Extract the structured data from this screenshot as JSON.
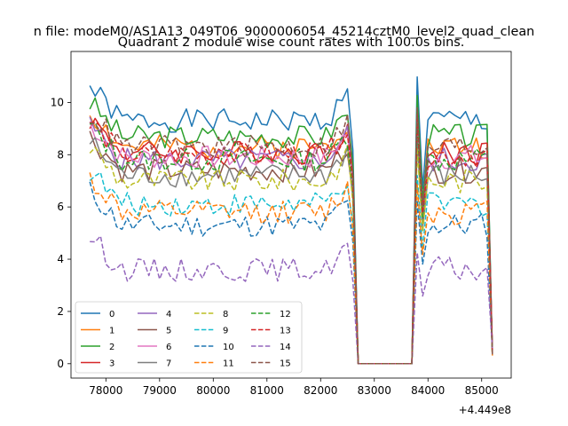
{
  "chart_data": {
    "type": "line",
    "suptitle": "n file: modeM0/AS1A13_049T06_9000006054_45214cztM0_level2_quad_clean",
    "title": "Quadrant 2 module wise count rates with 100.0s bins.",
    "xlabel": "",
    "ylabel": "",
    "x_offset_label": "+4.449e8",
    "xlim": [
      77350,
      85550
    ],
    "ylim": [
      -0.55,
      11.95
    ],
    "x_ticks": [
      78000,
      79000,
      80000,
      81000,
      82000,
      83000,
      84000,
      85000
    ],
    "x_tick_labels": [
      "78000",
      "79000",
      "80000",
      "81000",
      "82000",
      "83000",
      "84000",
      "85000"
    ],
    "y_ticks": [
      0,
      2,
      4,
      6,
      8,
      10
    ],
    "y_tick_labels": [
      "0",
      "2",
      "4",
      "6",
      "8",
      "10"
    ],
    "grid": false,
    "legend_position": "lower-left",
    "series": [
      {
        "name": "0",
        "color": "#1f77b4",
        "dash": "solid",
        "level": 9.3,
        "seed": 1
      },
      {
        "name": "1",
        "color": "#ff7f0e",
        "dash": "solid",
        "level": 8.3,
        "seed": 2
      },
      {
        "name": "2",
        "color": "#2ca02c",
        "dash": "solid",
        "level": 8.7,
        "seed": 3
      },
      {
        "name": "3",
        "color": "#d62728",
        "dash": "solid",
        "level": 8.1,
        "seed": 4
      },
      {
        "name": "4",
        "color": "#9467bd",
        "dash": "solid",
        "level": 7.8,
        "seed": 5
      },
      {
        "name": "5",
        "color": "#8c564b",
        "dash": "solid",
        "level": 7.4,
        "seed": 6
      },
      {
        "name": "6",
        "color": "#e377c2",
        "dash": "solid",
        "level": 7.9,
        "seed": 7
      },
      {
        "name": "7",
        "color": "#7f7f7f",
        "dash": "solid",
        "level": 7.2,
        "seed": 8
      },
      {
        "name": "8",
        "color": "#bcbd22",
        "dash": "dashed",
        "level": 7.0,
        "seed": 9
      },
      {
        "name": "9",
        "color": "#17becf",
        "dash": "dashed",
        "level": 6.1,
        "seed": 10
      },
      {
        "name": "10",
        "color": "#1f77b4",
        "dash": "dashed",
        "level": 5.3,
        "seed": 11
      },
      {
        "name": "11",
        "color": "#ff7f0e",
        "dash": "dashed",
        "level": 5.8,
        "seed": 12
      },
      {
        "name": "12",
        "color": "#2ca02c",
        "dash": "dashed",
        "level": 7.8,
        "seed": 13
      },
      {
        "name": "13",
        "color": "#d62728",
        "dash": "dashed",
        "level": 8.0,
        "seed": 14
      },
      {
        "name": "14",
        "color": "#9467bd",
        "dash": "dashed",
        "level": 3.6,
        "seed": 15
      },
      {
        "name": "15",
        "color": "#8c564b",
        "dash": "dashed",
        "level": 8.3,
        "seed": 16
      }
    ]
  }
}
